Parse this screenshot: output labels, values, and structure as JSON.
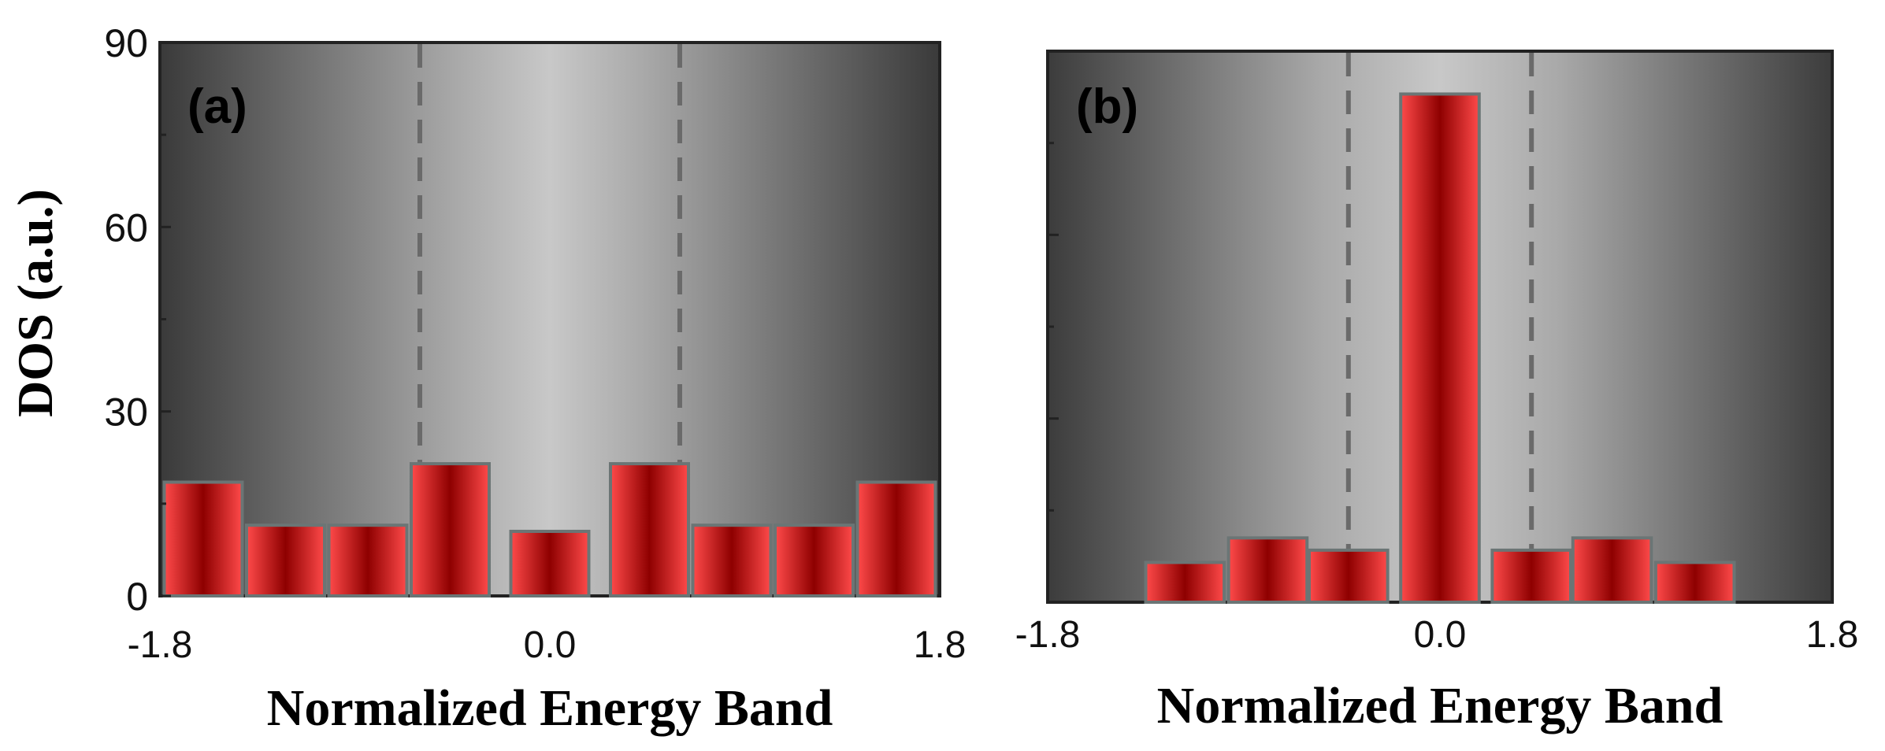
{
  "chart_data": [
    {
      "type": "bar",
      "panel_label": "(a)",
      "xlabel": "Normalized Energy Band",
      "ylabel": "DOS (a.u.)",
      "xlim": [
        -1.8,
        1.8
      ],
      "ylim": [
        0,
        90
      ],
      "xticks": [
        "-1.8",
        "0.0",
        "1.8"
      ],
      "yticks": [
        "0",
        "30",
        "60",
        "90"
      ],
      "ytick_values": [
        0,
        30,
        60,
        90
      ],
      "dashed_lines_x": [
        -0.6,
        0.6
      ],
      "bar_width": 0.36,
      "x": [
        -1.6,
        -1.22,
        -0.84,
        -0.46,
        0.0,
        0.46,
        0.84,
        1.22,
        1.6
      ],
      "values": [
        18.5,
        11.5,
        11.5,
        21.5,
        10.5,
        21.5,
        11.5,
        11.5,
        18.5
      ]
    },
    {
      "type": "bar",
      "panel_label": "(b)",
      "xlabel": "Normalized Energy Band",
      "ylabel": "",
      "xlim": [
        -1.8,
        1.8
      ],
      "ylim": [
        0,
        90
      ],
      "xticks": [
        "-1.8",
        "0.0",
        "1.8"
      ],
      "yticks": [],
      "ytick_values": [
        0,
        30,
        60,
        90
      ],
      "dashed_lines_x": [
        -0.42,
        0.42
      ],
      "bar_width": 0.36,
      "x": [
        -1.17,
        -0.79,
        -0.42,
        0.0,
        0.42,
        0.79,
        1.17
      ],
      "values": [
        6.5,
        10.5,
        8.5,
        83,
        8.5,
        10.5,
        6.5
      ]
    }
  ]
}
